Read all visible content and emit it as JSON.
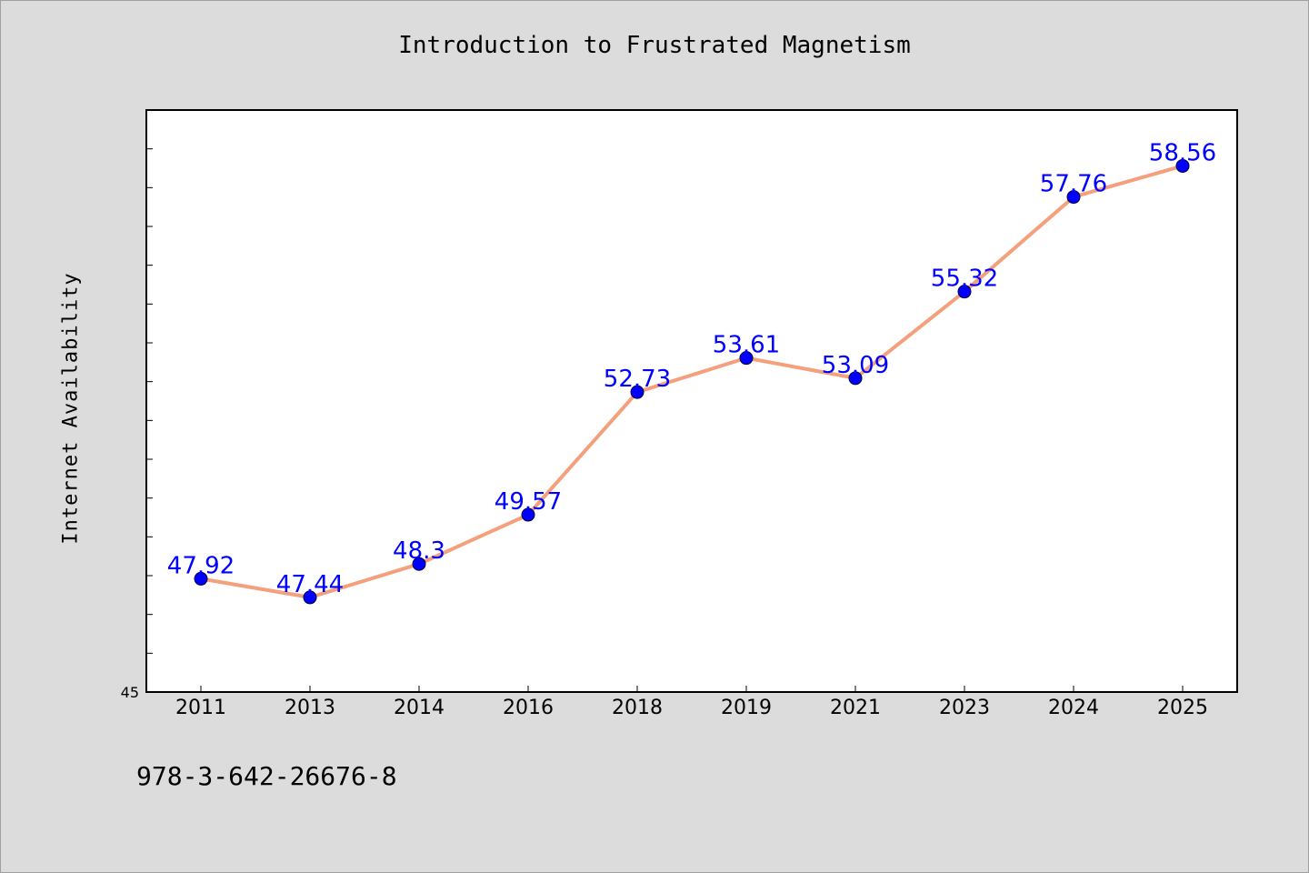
{
  "title": "Introduction to Frustrated Magnetism",
  "footer": {
    "code": "978-3-642-26676-8"
  },
  "colors": {
    "background": "#dcdcdc",
    "plot_background": "#ffffff",
    "line": "#f4a07c",
    "marker": "#0000ff",
    "label": "#0000ff"
  },
  "chart_data": {
    "type": "line",
    "title": "Introduction to Frustrated Magnetism",
    "xlabel": "",
    "ylabel": "Internet Availability",
    "categories": [
      "2011",
      "2013",
      "2014",
      "2016",
      "2018",
      "2019",
      "2021",
      "2023",
      "2024",
      "2025"
    ],
    "values": [
      47.92,
      47.44,
      48.3,
      49.57,
      52.73,
      53.61,
      53.09,
      55.32,
      57.76,
      58.56
    ],
    "data_labels": [
      "47.92",
      "47.44",
      "48.3",
      "49.57",
      "52.73",
      "53.61",
      "53.09",
      "55.32",
      "57.76",
      "58.56"
    ],
    "ylim": [
      45,
      60
    ],
    "y_tick_label": "45",
    "grid": false,
    "legend": "none"
  }
}
